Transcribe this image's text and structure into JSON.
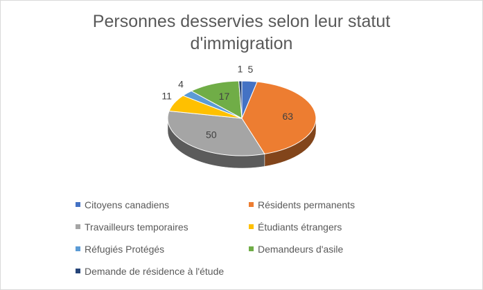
{
  "chart_data": {
    "type": "pie",
    "title_lines": [
      "Personnes desservies selon leur statut",
      "d'immigration"
    ],
    "slices": [
      {
        "label": "Citoyens canadiens",
        "value": 5,
        "color": "#4472c4"
      },
      {
        "label": "Résidents permanents",
        "value": 63,
        "color": "#ed7d31"
      },
      {
        "label": "Travailleurs temporaires",
        "value": 50,
        "color": "#a5a5a5"
      },
      {
        "label": "Étudiants étrangers",
        "value": 11,
        "color": "#ffc000"
      },
      {
        "label": "Réfugiés Protégés",
        "value": 4,
        "color": "#5b9bd5"
      },
      {
        "label": "Demandeurs d'asile",
        "value": 17,
        "color": "#70ad47"
      },
      {
        "label": "Demande de résidence à l'étude",
        "value": 1,
        "color": "#264478"
      }
    ],
    "legend_position": "bottom",
    "three_d": true
  }
}
